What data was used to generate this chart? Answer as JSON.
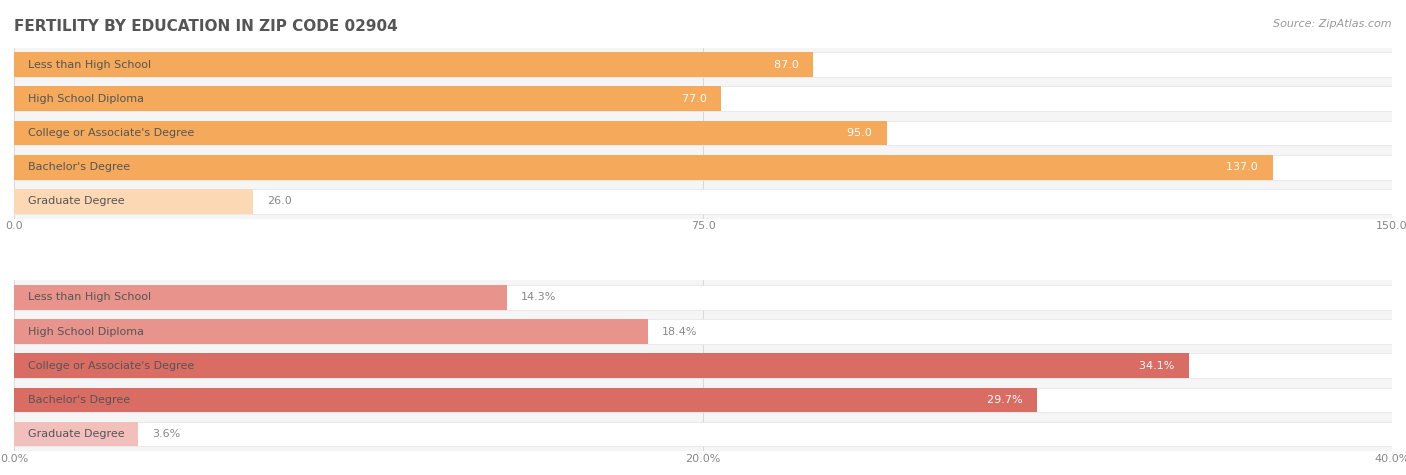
{
  "title": "FERTILITY BY EDUCATION IN ZIP CODE 02904",
  "source": "Source: ZipAtlas.com",
  "top_section": {
    "categories": [
      "Less than High School",
      "High School Diploma",
      "College or Associate's Degree",
      "Bachelor's Degree",
      "Graduate Degree"
    ],
    "values": [
      87.0,
      77.0,
      95.0,
      137.0,
      26.0
    ],
    "value_labels": [
      "87.0",
      "77.0",
      "95.0",
      "137.0",
      "26.0"
    ],
    "xlim": [
      0,
      150
    ],
    "xticks": [
      0.0,
      75.0,
      150.0
    ],
    "xtick_labels": [
      "0.0",
      "75.0",
      "150.0"
    ],
    "bar_colors": [
      "#f5a95b",
      "#f5a95b",
      "#f5a95b",
      "#f5a95b",
      "#fcd8b5"
    ],
    "value_inside": [
      true,
      true,
      true,
      true,
      false
    ],
    "value_color_inside": "#ffffff",
    "value_color_outside": "#888888",
    "label_color": "#555555",
    "bg_color": "#f5f5f5",
    "bar_bg": "#ffffff"
  },
  "bottom_section": {
    "categories": [
      "Less than High School",
      "High School Diploma",
      "College or Associate's Degree",
      "Bachelor's Degree",
      "Graduate Degree"
    ],
    "values": [
      14.3,
      18.4,
      34.1,
      29.7,
      3.6
    ],
    "value_labels": [
      "14.3%",
      "18.4%",
      "34.1%",
      "29.7%",
      "3.6%"
    ],
    "xlim": [
      0,
      40
    ],
    "xticks": [
      0.0,
      20.0,
      40.0
    ],
    "xtick_labels": [
      "0.0%",
      "20.0%",
      "40.0%"
    ],
    "bar_colors": [
      "#e8938b",
      "#e8938b",
      "#d96c63",
      "#d96c63",
      "#f2c0bc"
    ],
    "value_inside": [
      false,
      false,
      true,
      true,
      false
    ],
    "value_color_inside": "#ffffff",
    "value_color_outside": "#888888",
    "label_color": "#555555",
    "bg_color": "#f5f5f5",
    "bar_bg": "#ffffff"
  },
  "title_color": "#555555",
  "title_fontsize": 11,
  "source_color": "#999999",
  "source_fontsize": 8,
  "label_fontsize": 8,
  "value_fontsize": 8,
  "tick_fontsize": 8,
  "bar_height": 0.72,
  "background_color": "#ffffff"
}
